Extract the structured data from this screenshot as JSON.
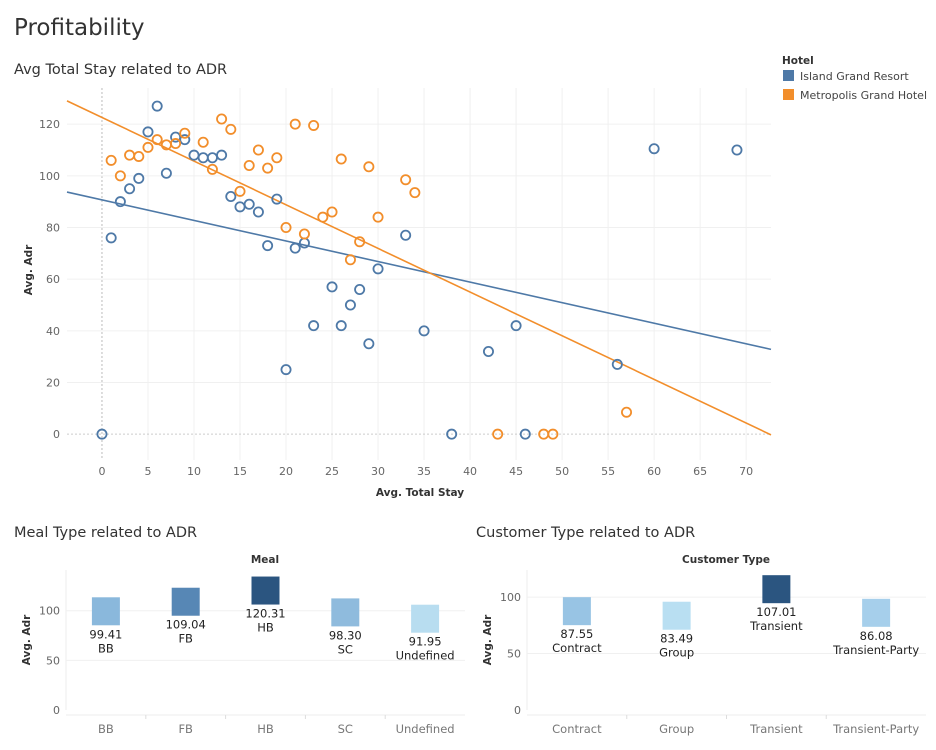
{
  "dashboard_title": "Profitability",
  "legend": {
    "title": "Hotel",
    "items": [
      {
        "name": "Island Grand Resort",
        "color": "#4e79a7"
      },
      {
        "name": "Metropolis Grand Hotel",
        "color": "#f28e2b"
      }
    ]
  },
  "chart_data": [
    {
      "type": "scatter",
      "title": "Avg Total Stay related to ADR",
      "xlabel": "Avg. Total Stay",
      "ylabel": "Avg. Adr",
      "xlim": [
        -3.8,
        72.7
      ],
      "ylim": [
        -10,
        134
      ],
      "xticks": [
        "0",
        "5",
        "10",
        "15",
        "20",
        "25",
        "30",
        "35",
        "40",
        "45",
        "50",
        "55",
        "60",
        "65",
        "70"
      ],
      "yticks": [
        "0",
        "20",
        "40",
        "60",
        "80",
        "100",
        "120"
      ],
      "grid": true,
      "legend_position": "right",
      "series": [
        {
          "name": "Island Grand Resort",
          "color": "#4e79a7",
          "trend": {
            "intercept": 90.7,
            "slope": -0.796
          },
          "points": [
            [
              0,
              0
            ],
            [
              1,
              76
            ],
            [
              2,
              90
            ],
            [
              3,
              95
            ],
            [
              4,
              99
            ],
            [
              5,
              117
            ],
            [
              6,
              127
            ],
            [
              7,
              101
            ],
            [
              8,
              115
            ],
            [
              9,
              114
            ],
            [
              10,
              108
            ],
            [
              11,
              107
            ],
            [
              12,
              107
            ],
            [
              13,
              108
            ],
            [
              14,
              92
            ],
            [
              15,
              88
            ],
            [
              16,
              89
            ],
            [
              17,
              86
            ],
            [
              18,
              73
            ],
            [
              19,
              91
            ],
            [
              20,
              25
            ],
            [
              21,
              72
            ],
            [
              22,
              74
            ],
            [
              23,
              42
            ],
            [
              25,
              57
            ],
            [
              26,
              42
            ],
            [
              27,
              50
            ],
            [
              28,
              56
            ],
            [
              29,
              35
            ],
            [
              30,
              64
            ],
            [
              33,
              77
            ],
            [
              35,
              40
            ],
            [
              38,
              0
            ],
            [
              42,
              32
            ],
            [
              45,
              42
            ],
            [
              46,
              0
            ],
            [
              56,
              27
            ],
            [
              60,
              110.5
            ],
            [
              69,
              110
            ]
          ]
        },
        {
          "name": "Metropolis Grand Hotel",
          "color": "#f28e2b",
          "trend": {
            "intercept": 122.6,
            "slope": -1.69
          },
          "points": [
            [
              1,
              106
            ],
            [
              2,
              100
            ],
            [
              3,
              108
            ],
            [
              4,
              107.5
            ],
            [
              5,
              111
            ],
            [
              6,
              114
            ],
            [
              7,
              112
            ],
            [
              8,
              112.5
            ],
            [
              9,
              116.5
            ],
            [
              11,
              113
            ],
            [
              12,
              102.5
            ],
            [
              13,
              122
            ],
            [
              14,
              118
            ],
            [
              15,
              94
            ],
            [
              16,
              104
            ],
            [
              17,
              110
            ],
            [
              18,
              103
            ],
            [
              19,
              107
            ],
            [
              20,
              80
            ],
            [
              21,
              120
            ],
            [
              22,
              77.5
            ],
            [
              23,
              119.5
            ],
            [
              24,
              84
            ],
            [
              25,
              86
            ],
            [
              26,
              106.5
            ],
            [
              27,
              67.5
            ],
            [
              28,
              74.5
            ],
            [
              29,
              103.5
            ],
            [
              30,
              84
            ],
            [
              33,
              98.5
            ],
            [
              34,
              93.5
            ],
            [
              43,
              0
            ],
            [
              48,
              0
            ],
            [
              49,
              0
            ],
            [
              57,
              8.5
            ]
          ]
        }
      ]
    },
    {
      "type": "bar",
      "title": "Meal Type related to ADR",
      "header": "Meal",
      "ylabel": "Avg. Adr",
      "ylim": [
        0,
        141
      ],
      "yticks": [
        "0",
        "50",
        "100"
      ],
      "categories": [
        "BB",
        "FB",
        "HB",
        "SC",
        "Undefined"
      ],
      "values": [
        99.41,
        109.04,
        120.31,
        98.3,
        91.95
      ],
      "labels": [
        "99.41",
        "109.04",
        "120.31",
        "98.30",
        "91.95"
      ],
      "colors": [
        "#8ab8dc",
        "#5787b5",
        "#2b5580",
        "#8fbbdd",
        "#b8ddf0"
      ]
    },
    {
      "type": "bar",
      "title": "Customer Type related to ADR",
      "header": "Customer Type",
      "ylabel": "Avg. Adr",
      "ylim": [
        0,
        124
      ],
      "yticks": [
        "0",
        "50",
        "100"
      ],
      "categories": [
        "Contract",
        "Group",
        "Transient",
        "Transient-Party"
      ],
      "values": [
        87.55,
        83.49,
        107.01,
        86.08
      ],
      "labels": [
        "87.55",
        "83.49",
        "107.01",
        "86.08"
      ],
      "colors": [
        "#98c4e4",
        "#b9dff2",
        "#2b5580",
        "#a6cfeb"
      ]
    }
  ]
}
